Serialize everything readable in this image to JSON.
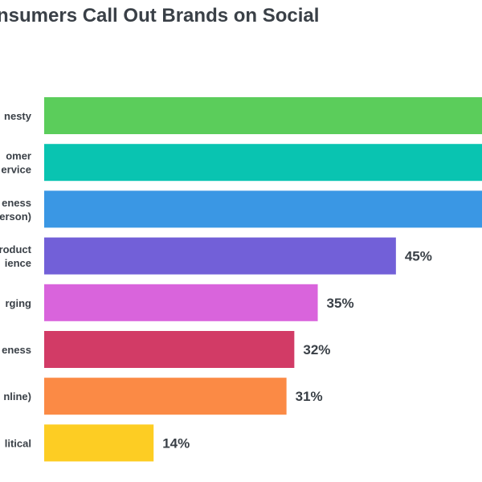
{
  "chart_data": {
    "type": "bar",
    "orientation": "horizontal",
    "title": "nsumers Call Out Brands on Social",
    "categories": [
      [
        "nesty"
      ],
      [
        "omer",
        "ervice"
      ],
      [
        "eness",
        "erson)"
      ],
      [
        "roduct",
        "ience"
      ],
      [
        "rging"
      ],
      [
        "eness"
      ],
      [
        "nline)"
      ],
      [
        "litical"
      ]
    ],
    "values": [
      null,
      null,
      null,
      45,
      35,
      32,
      31,
      14
    ],
    "value_labels": [
      "",
      "",
      "",
      "45%",
      "35%",
      "32%",
      "31%",
      "14%"
    ],
    "colors": [
      "#5bcd5b",
      "#09c4b1",
      "#3a97e4",
      "#7260d8",
      "#d964dc",
      "#d23b66",
      "#fb8a45",
      "#fdcd23"
    ],
    "xlim": [
      0,
      100
    ],
    "grid": false
  }
}
